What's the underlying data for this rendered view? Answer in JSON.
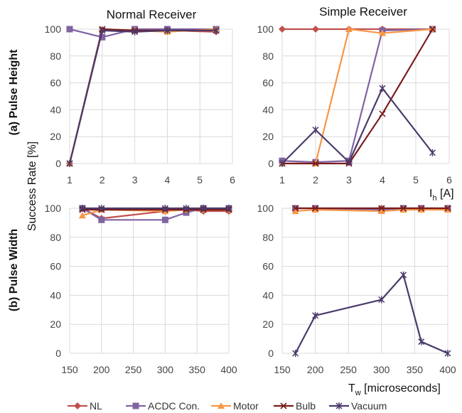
{
  "figure": {
    "ylabel": "Success Rate [%]",
    "row_labels": [
      "(a) Pulse Height",
      "(b) Pulse Width"
    ],
    "col_titles": [
      "Normal Receiver",
      "Simple Receiver"
    ],
    "xlabel_top": {
      "main": "I",
      "sub": "h",
      "unit": " [A]"
    },
    "xlabel_bottom": {
      "main": "T",
      "sub": "w",
      "unit": " [microseconds]"
    }
  },
  "legend": [
    {
      "name": "NL",
      "color": "#c0504d",
      "marker": "diamond"
    },
    {
      "name": "ACDC Con.",
      "color": "#8064a2",
      "marker": "square"
    },
    {
      "name": "Motor",
      "color": "#f79646",
      "marker": "triangle"
    },
    {
      "name": "Bulb",
      "color": "#7b1c1c",
      "marker": "x"
    },
    {
      "name": "Vacuum",
      "color": "#4b3a6b",
      "marker": "star"
    }
  ],
  "chart_data": [
    {
      "type": "line",
      "title": "Normal Receiver",
      "row": "(a) Pulse Height",
      "xlim": [
        1,
        6
      ],
      "xticks": [
        1,
        2,
        3,
        4,
        5,
        6
      ],
      "ylim": [
        0,
        100
      ],
      "yticks": [
        0,
        20,
        40,
        60,
        80,
        100
      ],
      "grid": true,
      "series": [
        {
          "name": "NL",
          "x": [
            1,
            2,
            3,
            4,
            5.5
          ],
          "y": [
            0,
            99,
            99,
            99,
            98
          ]
        },
        {
          "name": "ACDC Con.",
          "x": [
            1,
            2,
            3,
            4,
            5.5
          ],
          "y": [
            100,
            94,
            100,
            100,
            100
          ]
        },
        {
          "name": "Motor",
          "x": [
            1,
            2,
            3,
            4,
            5.5
          ],
          "y": [
            0,
            100,
            99,
            98,
            100
          ]
        },
        {
          "name": "Bulb",
          "x": [
            1,
            2,
            3,
            4,
            5.5
          ],
          "y": [
            0,
            100,
            99,
            99,
            99
          ]
        },
        {
          "name": "Vacuum",
          "x": [
            1,
            2,
            3,
            4,
            5.5
          ],
          "y": [
            0,
            99,
            98,
            99,
            99
          ]
        }
      ]
    },
    {
      "type": "line",
      "title": "Simple Receiver",
      "row": "(a) Pulse Height",
      "xlim": [
        1,
        6
      ],
      "xticks": [
        1,
        2,
        3,
        4,
        5,
        6
      ],
      "ylim": [
        0,
        100
      ],
      "yticks": [
        0,
        20,
        40,
        60,
        80,
        100
      ],
      "grid": true,
      "series": [
        {
          "name": "NL",
          "x": [
            1,
            2,
            3,
            4,
            5.5
          ],
          "y": [
            100,
            100,
            100,
            100,
            100
          ]
        },
        {
          "name": "ACDC Con.",
          "x": [
            1,
            2,
            3,
            4,
            5.5
          ],
          "y": [
            2,
            1,
            2,
            99,
            100
          ]
        },
        {
          "name": "Motor",
          "x": [
            1,
            2,
            3,
            4,
            5.5
          ],
          "y": [
            0,
            0,
            100,
            97,
            100
          ]
        },
        {
          "name": "Bulb",
          "x": [
            1,
            2,
            3,
            4,
            5.5
          ],
          "y": [
            0,
            0,
            0,
            37,
            100
          ]
        },
        {
          "name": "Vacuum",
          "x": [
            1,
            2,
            3,
            4,
            5.5
          ],
          "y": [
            0,
            25,
            1,
            56,
            8
          ]
        }
      ]
    },
    {
      "type": "line",
      "title": "Normal Receiver",
      "row": "(b) Pulse Width",
      "xlim": [
        150,
        400
      ],
      "xticks": [
        150,
        200,
        250,
        300,
        350,
        400
      ],
      "ylim": [
        0,
        100
      ],
      "yticks": [
        0,
        20,
        40,
        60,
        80,
        100
      ],
      "grid": true,
      "series": [
        {
          "name": "NL",
          "x": [
            170,
            200,
            300,
            333,
            360,
            400
          ],
          "y": [
            100,
            93,
            98,
            99,
            98,
            98
          ]
        },
        {
          "name": "ACDC Con.",
          "x": [
            170,
            200,
            300,
            333,
            360,
            400
          ],
          "y": [
            100,
            92,
            92,
            97,
            100,
            100
          ]
        },
        {
          "name": "Motor",
          "x": [
            170,
            200,
            300,
            333,
            360,
            400
          ],
          "y": [
            95,
            99,
            98,
            99,
            99,
            99
          ]
        },
        {
          "name": "Bulb",
          "x": [
            170,
            200,
            300,
            333,
            360,
            400
          ],
          "y": [
            99,
            99,
            99,
            99,
            99,
            99
          ]
        },
        {
          "name": "Vacuum",
          "x": [
            170,
            200,
            300,
            333,
            360,
            400
          ],
          "y": [
            100,
            100,
            100,
            100,
            100,
            100
          ]
        }
      ]
    },
    {
      "type": "line",
      "title": "Simple Receiver",
      "row": "(b) Pulse Width",
      "xlim": [
        150,
        400
      ],
      "xticks": [
        150,
        200,
        250,
        300,
        350,
        400
      ],
      "ylim": [
        0,
        100
      ],
      "yticks": [
        0,
        20,
        40,
        60,
        80,
        100
      ],
      "grid": true,
      "series": [
        {
          "name": "NL",
          "x": [
            170,
            200,
            300,
            333,
            360,
            400
          ],
          "y": [
            100,
            100,
            100,
            100,
            100,
            100
          ]
        },
        {
          "name": "ACDC Con.",
          "x": [
            170,
            200,
            300,
            333,
            360,
            400
          ],
          "y": [
            100,
            100,
            99,
            100,
            100,
            100
          ]
        },
        {
          "name": "Motor",
          "x": [
            170,
            200,
            300,
            333,
            360,
            400
          ],
          "y": [
            98,
            99,
            98,
            99,
            99,
            99
          ]
        },
        {
          "name": "Bulb",
          "x": [
            170,
            200,
            300,
            333,
            360,
            400
          ],
          "y": [
            100,
            100,
            100,
            100,
            100,
            100
          ]
        },
        {
          "name": "Vacuum",
          "x": [
            170,
            200,
            300,
            333,
            360,
            400
          ],
          "y": [
            0,
            26,
            37,
            54,
            8,
            0
          ]
        }
      ]
    }
  ]
}
